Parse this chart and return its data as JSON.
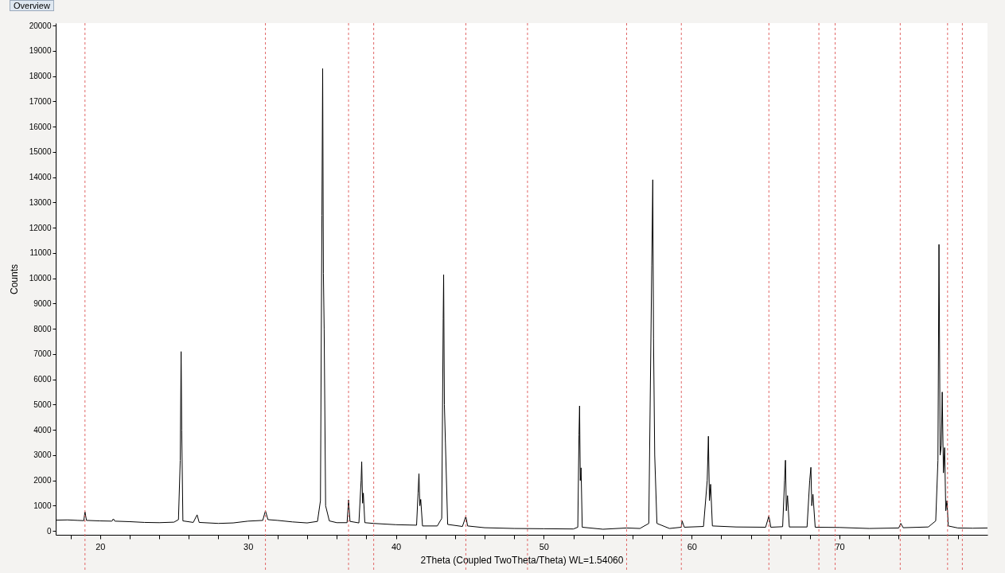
{
  "chart_data": {
    "type": "line",
    "xlabel": "2Theta (Coupled TwoTheta/Theta) WL=1.54060",
    "ylabel": "Counts",
    "annotations": [
      "Overview"
    ],
    "xlim": [
      17,
      80
    ],
    "ylim": [
      -150,
      20100
    ],
    "xticks": [
      {
        "value": 18,
        "label": null
      },
      20,
      {
        "value": 22,
        "label": null
      },
      {
        "value": 24,
        "label": null
      },
      {
        "value": 26,
        "label": null
      },
      {
        "value": 28,
        "label": null
      },
      30,
      {
        "value": 32,
        "label": null
      },
      {
        "value": 34,
        "label": null
      },
      {
        "value": 36,
        "label": null
      },
      {
        "value": 38,
        "label": null
      },
      40,
      {
        "value": 42,
        "label": null
      },
      {
        "value": 44,
        "label": null
      },
      {
        "value": 46,
        "label": null
      },
      {
        "value": 48,
        "label": null
      },
      50,
      {
        "value": 52,
        "label": null
      },
      {
        "value": 54,
        "label": null
      },
      {
        "value": 56,
        "label": null
      },
      {
        "value": 58,
        "label": null
      },
      60,
      {
        "value": 62,
        "label": null
      },
      {
        "value": 64,
        "label": null
      },
      {
        "value": 66,
        "label": null
      },
      {
        "value": 68,
        "label": null
      },
      70,
      {
        "value": 72,
        "label": null
      },
      {
        "value": 74,
        "label": null
      },
      {
        "value": 76,
        "label": null
      },
      {
        "value": 78,
        "label": null
      }
    ],
    "yticks": [
      0,
      1000,
      2000,
      3000,
      4000,
      5000,
      6000,
      7000,
      8000,
      9000,
      10000,
      11000,
      12000,
      13000,
      14000,
      15000,
      16000,
      17000,
      18000,
      19000,
      20000
    ],
    "ref_lines": [
      {
        "axis": "x",
        "value": 18.98,
        "color": "#e06666",
        "line_style": "dashed"
      },
      {
        "axis": "x",
        "value": 31.18,
        "color": "#e06666",
        "line_style": "dashed"
      },
      {
        "axis": "x",
        "value": 36.8,
        "color": "#e06666",
        "line_style": "dashed"
      },
      {
        "axis": "x",
        "value": 38.5,
        "color": "#e06666",
        "line_style": "dashed"
      },
      {
        "axis": "x",
        "value": 44.73,
        "color": "#e06666",
        "line_style": "dashed"
      },
      {
        "axis": "x",
        "value": 48.9,
        "color": "#e06666",
        "line_style": "dashed"
      },
      {
        "axis": "x",
        "value": 55.6,
        "color": "#e06666",
        "line_style": "dashed"
      },
      {
        "axis": "x",
        "value": 59.3,
        "color": "#e06666",
        "line_style": "dashed"
      },
      {
        "axis": "x",
        "value": 65.22,
        "color": "#e06666",
        "line_style": "dashed"
      },
      {
        "axis": "x",
        "value": 68.6,
        "color": "#e06666",
        "line_style": "dashed"
      },
      {
        "axis": "x",
        "value": 69.7,
        "color": "#e06666",
        "line_style": "dashed"
      },
      {
        "axis": "x",
        "value": 74.1,
        "color": "#e06666",
        "line_style": "dashed"
      },
      {
        "axis": "x",
        "value": 77.3,
        "color": "#e06666",
        "line_style": "dashed"
      },
      {
        "axis": "x",
        "value": 78.3,
        "color": "#e06666",
        "line_style": "dashed"
      }
    ],
    "series": [
      {
        "color": "#000000",
        "x": [
          17,
          17.8,
          18.5,
          18.9,
          18.98,
          19.08,
          20,
          20.8,
          20.9,
          21.0,
          22,
          23,
          24,
          25,
          25.3,
          25.42,
          25.48,
          25.52,
          25.6,
          26.3,
          26.56,
          26.7,
          28,
          29,
          30,
          31,
          31.18,
          31.35,
          32,
          33,
          34,
          34.7,
          34.9,
          35.0,
          35.05,
          35.1,
          35.15,
          35.25,
          35.5,
          36,
          36.7,
          36.8,
          36.9,
          37.5,
          37.65,
          37.69,
          37.75,
          37.8,
          37.9,
          38.5,
          40,
          41.4,
          41.5,
          41.56,
          41.62,
          41.68,
          41.8,
          42.8,
          43.1,
          43.2,
          43.23,
          43.28,
          43.35,
          43.5,
          44.5,
          44.73,
          44.85,
          46,
          48,
          50,
          52,
          52.3,
          52.38,
          52.42,
          52.47,
          52.52,
          52.6,
          54,
          55.6,
          56.5,
          57.1,
          57.3,
          57.37,
          57.42,
          57.5,
          57.65,
          58.5,
          59.3,
          59.35,
          59.5,
          60.8,
          61.05,
          61.13,
          61.2,
          61.28,
          61.4,
          63,
          65,
          65.22,
          65.35,
          66.15,
          66.28,
          66.34,
          66.4,
          66.48,
          66.6,
          67.8,
          67.98,
          68.06,
          68.12,
          68.2,
          68.35,
          70,
          72,
          74,
          74.14,
          74.3,
          76,
          76.5,
          76.65,
          76.72,
          76.8,
          76.88,
          76.94,
          77.02,
          77.1,
          77.18,
          77.26,
          77.35,
          78,
          79,
          80
        ],
        "values": [
          430,
          440,
          420,
          410,
          760,
          420,
          400,
          390,
          480,
          390,
          370,
          340,
          330,
          350,
          450,
          2800,
          7100,
          4000,
          400,
          340,
          640,
          340,
          300,
          320,
          390,
          420,
          800,
          450,
          420,
          360,
          320,
          380,
          1200,
          12500,
          18300,
          10200,
          8000,
          1000,
          400,
          330,
          330,
          1230,
          380,
          320,
          2000,
          2740,
          1100,
          1500,
          330,
          300,
          250,
          230,
          1500,
          2270,
          1000,
          1250,
          200,
          200,
          500,
          8400,
          10140,
          5000,
          3500,
          260,
          180,
          580,
          200,
          130,
          100,
          90,
          80,
          150,
          3800,
          4950,
          2000,
          2500,
          150,
          70,
          120,
          100,
          300,
          10500,
          13900,
          7600,
          3000,
          300,
          100,
          150,
          400,
          150,
          180,
          2000,
          3750,
          1200,
          1850,
          200,
          160,
          150,
          600,
          150,
          170,
          2000,
          2800,
          800,
          1400,
          160,
          160,
          2000,
          2520,
          1000,
          1450,
          150,
          140,
          100,
          120,
          300,
          130,
          160,
          400,
          2800,
          11340,
          3000,
          3400,
          5500,
          2300,
          3300,
          800,
          1200,
          200,
          120,
          110,
          120
        ]
      }
    ]
  }
}
